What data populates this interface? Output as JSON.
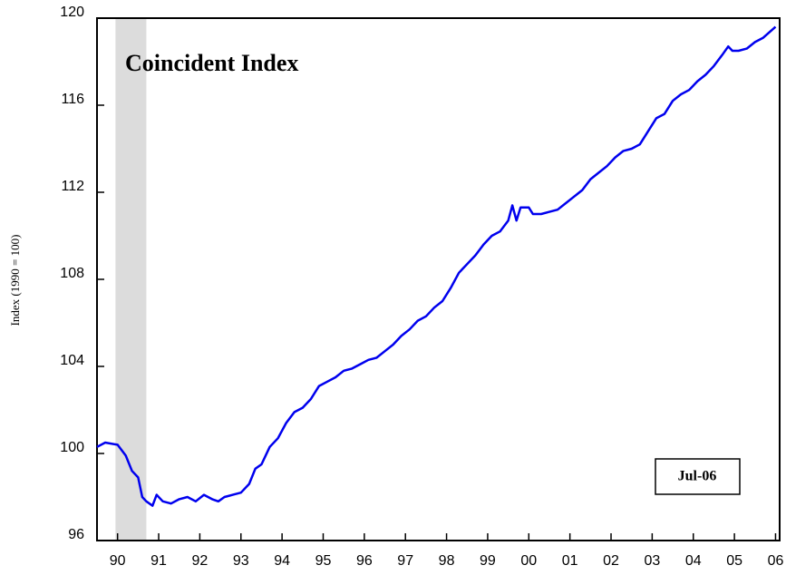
{
  "chart_data": {
    "type": "line",
    "title": "Coincident Index",
    "ylabel": "Index (1990 = 100)",
    "annotation": "Jul-06",
    "shaded_region": [
      1990.45,
      1991.2
    ],
    "shade_color": "#dcdcdc",
    "xlim": [
      1990,
      2006.6
    ],
    "ylim": [
      96,
      120
    ],
    "yticks": [
      96,
      100,
      104,
      108,
      112,
      116,
      120
    ],
    "xticks": [
      {
        "value": 1990.5,
        "label": "90"
      },
      {
        "value": 1991.5,
        "label": "91"
      },
      {
        "value": 1992.5,
        "label": "92"
      },
      {
        "value": 1993.5,
        "label": "93"
      },
      {
        "value": 1994.5,
        "label": "94"
      },
      {
        "value": 1995.5,
        "label": "95"
      },
      {
        "value": 1996.5,
        "label": "96"
      },
      {
        "value": 1997.5,
        "label": "97"
      },
      {
        "value": 1998.5,
        "label": "98"
      },
      {
        "value": 1999.5,
        "label": "99"
      },
      {
        "value": 2000.5,
        "label": "00"
      },
      {
        "value": 2001.5,
        "label": "01"
      },
      {
        "value": 2002.5,
        "label": "02"
      },
      {
        "value": 2003.5,
        "label": "03"
      },
      {
        "value": 2004.5,
        "label": "04"
      },
      {
        "value": 2005.5,
        "label": "05"
      },
      {
        "value": 2006.5,
        "label": "06"
      }
    ],
    "grid": false,
    "x": [
      1990.0,
      1990.2,
      1990.5,
      1990.7,
      1990.85,
      1991.0,
      1991.1,
      1991.2,
      1991.35,
      1991.45,
      1991.6,
      1991.8,
      1992.0,
      1992.2,
      1992.4,
      1992.6,
      1992.8,
      1992.95,
      1993.1,
      1993.3,
      1993.5,
      1993.7,
      1993.85,
      1994.0,
      1994.2,
      1994.4,
      1994.6,
      1994.8,
      1995.0,
      1995.2,
      1995.4,
      1995.6,
      1995.8,
      1996.0,
      1996.2,
      1996.4,
      1996.6,
      1996.8,
      1997.0,
      1997.2,
      1997.4,
      1997.6,
      1997.8,
      1998.0,
      1998.2,
      1998.4,
      1998.6,
      1998.8,
      1999.0,
      1999.2,
      1999.4,
      1999.6,
      1999.8,
      2000.0,
      2000.1,
      2000.2,
      2000.3,
      2000.5,
      2000.6,
      2000.8,
      2001.0,
      2001.2,
      2001.4,
      2001.6,
      2001.8,
      2002.0,
      2002.2,
      2002.4,
      2002.6,
      2002.8,
      2003.0,
      2003.2,
      2003.4,
      2003.6,
      2003.8,
      2004.0,
      2004.2,
      2004.4,
      2004.6,
      2004.8,
      2005.0,
      2005.2,
      2005.35,
      2005.45,
      2005.6,
      2005.8,
      2006.0,
      2006.2,
      2006.5
    ],
    "series": [
      {
        "name": "Coincident Index",
        "color": "#0000ee",
        "values": [
          100.3,
          100.5,
          100.4,
          99.9,
          99.2,
          98.9,
          98.0,
          97.8,
          97.6,
          98.1,
          97.8,
          97.7,
          97.9,
          98.0,
          97.8,
          98.1,
          97.9,
          97.8,
          98.0,
          98.1,
          98.2,
          98.6,
          99.3,
          99.5,
          100.3,
          100.7,
          101.4,
          101.9,
          102.1,
          102.5,
          103.1,
          103.3,
          103.5,
          103.8,
          103.9,
          104.1,
          104.3,
          104.4,
          104.7,
          105.0,
          105.4,
          105.7,
          106.1,
          106.3,
          106.7,
          107.0,
          107.6,
          108.3,
          108.7,
          109.1,
          109.6,
          110.0,
          110.2,
          110.7,
          111.4,
          110.7,
          111.3,
          111.3,
          111.0,
          111.0,
          111.1,
          111.2,
          111.5,
          111.8,
          112.1,
          112.6,
          112.9,
          113.2,
          113.6,
          113.9,
          114.0,
          114.2,
          114.8,
          115.4,
          115.6,
          116.2,
          116.5,
          116.7,
          117.1,
          117.4,
          117.8,
          118.3,
          118.7,
          118.5,
          118.5,
          118.6,
          118.9,
          119.1,
          119.6
        ]
      }
    ]
  }
}
